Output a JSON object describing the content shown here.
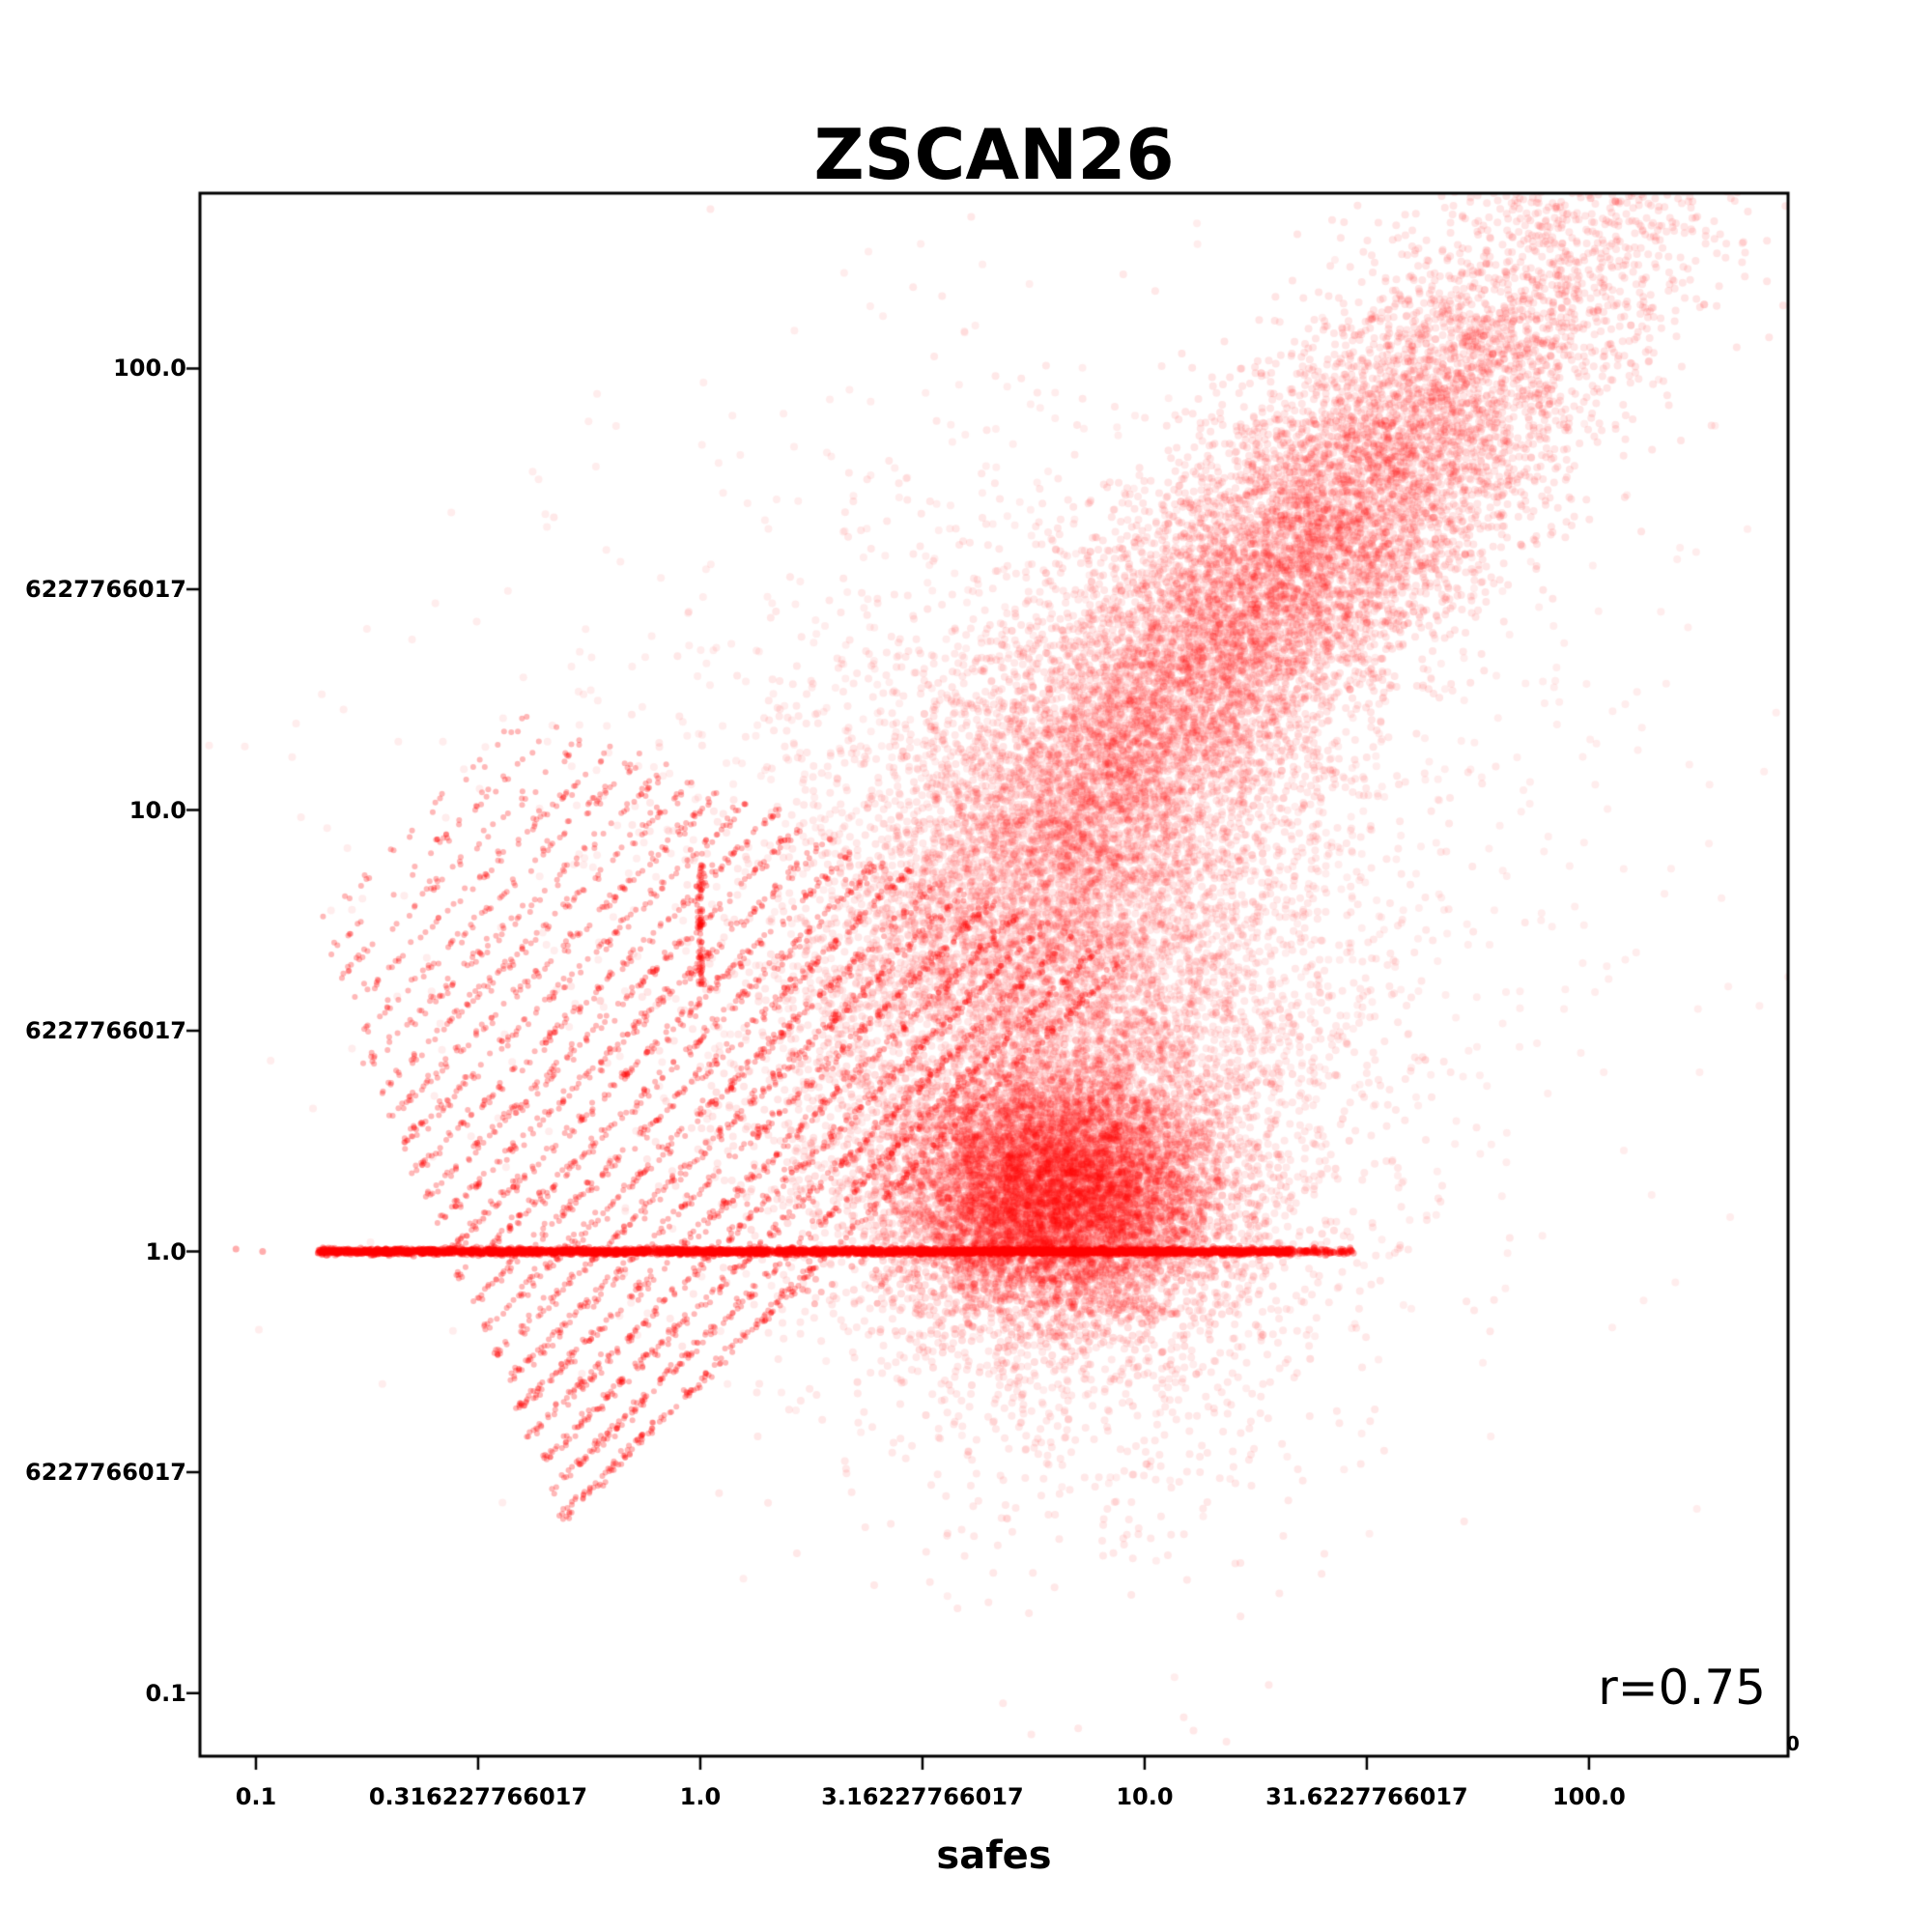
{
  "chart_data": {
    "type": "scatter",
    "title": "ZSCAN26",
    "xlabel": "safes",
    "ylabel": "",
    "annotation": "r=0.75",
    "correlation": 0.75,
    "point_color": "#ff0000",
    "background": "#ffffff",
    "x_scale": "log",
    "y_scale": "log",
    "x_log_range": [
      -1.126,
      2.448
    ],
    "y_log_range": [
      -1.143,
      2.397
    ],
    "x_ticks_log": [
      -1,
      -0.5,
      0,
      0.5,
      1,
      1.5,
      2
    ],
    "y_ticks_log": [
      2,
      1.5,
      1,
      0.5,
      0,
      -0.5,
      -1
    ],
    "x_tick_labels": [
      "0.1",
      "0.316227766017",
      "1.0",
      "3.16227766017",
      "10.0",
      "31.6227766017",
      "100.0"
    ],
    "y_tick_labels": [
      "100.0",
      "6227766017",
      "10.0",
      "6227766017",
      "1.0",
      "6227766017",
      "0.1"
    ],
    "corner_text": "0",
    "legend": null,
    "grid": false,
    "generator": {
      "seed": 42,
      "clusters": [
        {
          "n": 11000,
          "cx": 1.3,
          "sx": 0.42,
          "slope": 0.95,
          "intercept": 0.28,
          "sy": 0.22,
          "alpha": 0.1,
          "r": 4
        },
        {
          "n": 9000,
          "cx": 0.82,
          "sx": 0.3,
          "cy": 0.55,
          "sy": 0.45,
          "alpha": 0.09,
          "r": 4
        },
        {
          "n": 7000,
          "cx": 0.8,
          "sx": 0.18,
          "cy": 0.13,
          "sy": 0.14,
          "alpha": 0.13,
          "r": 4
        },
        {
          "n": 1600,
          "cx": 0.85,
          "sx": 0.65,
          "cy": 0.85,
          "sy": 0.55,
          "alpha": 0.07,
          "r": 4
        }
      ],
      "streaks": {
        "count": 23,
        "logc_start": 1.6,
        "logc_step": -0.086,
        "lx_start_base": -0.88,
        "lx_start_step": 0.026,
        "len_base": 0.5,
        "len_step": 0.035,
        "n_base": 25,
        "n_step": 14,
        "jitter": 0.006,
        "alpha": 0.28,
        "r": 3
      },
      "vertical": {
        "n": 90,
        "lx_center": 0.0,
        "lx_sigma": 0.004,
        "ly_min": 0.6,
        "ly_max": 0.88,
        "alpha": 0.3,
        "r": 3
      },
      "baseline": {
        "n": 4200,
        "ly_sigma": 0.0035,
        "core": [
          -0.72,
          1.1
        ],
        "core_frac": 0.82,
        "tail": [
          1.1,
          1.33
        ],
        "tail_frac": 0.1,
        "left": [
          -0.86,
          -0.72
        ],
        "left_frac": 0.06,
        "far": [
          1.33,
          1.47
        ],
        "far_frac": 0.02,
        "isolates": [
          -1.045,
          -0.985
        ],
        "alpha": 0.32,
        "r": 3.5
      },
      "below": {
        "n": 22,
        "lx": [
          0.22,
          0.85
        ],
        "ly": [
          -0.12,
          -0.02
        ],
        "alpha": 0.25,
        "r": 3.5
      }
    }
  }
}
